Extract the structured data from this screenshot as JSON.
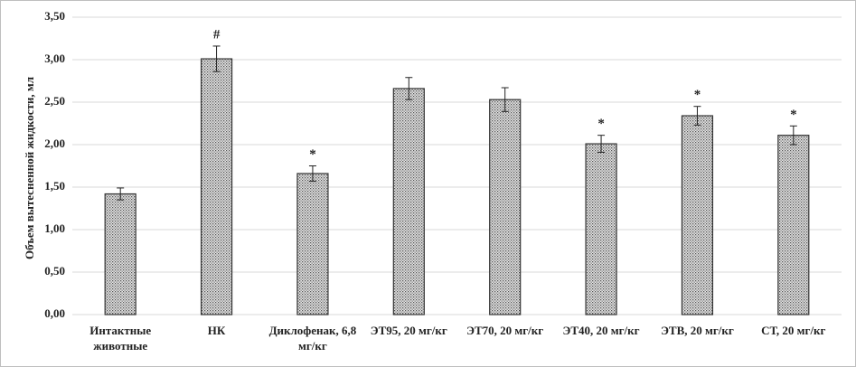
{
  "chart_data": {
    "type": "bar",
    "y_label": "Объем вытесненной жидкости, мл",
    "categories": [
      "Интактные животные",
      "НК",
      "Диклофенак, 6,8 мг/кг",
      "ЭТ95, 20 мг/кг",
      "ЭТ70, 20 мг/кг",
      "ЭТ40, 20 мг/кг",
      "ЭТВ, 20 мг/кг",
      "СТ, 20 мг/кг"
    ],
    "values": [
      1.42,
      3.01,
      1.66,
      2.66,
      2.53,
      2.01,
      2.34,
      2.11
    ],
    "errors": [
      0.07,
      0.15,
      0.09,
      0.13,
      0.14,
      0.1,
      0.11,
      0.11
    ],
    "annotations": [
      null,
      "#",
      "*",
      null,
      null,
      "*",
      "*",
      "*"
    ],
    "color": "#bdbdbd",
    "ylim": [
      0,
      3.5
    ],
    "yticks": [
      {
        "value": 0,
        "label": "0,00"
      },
      {
        "value": 0.5,
        "label": "0,50"
      },
      {
        "value": 1,
        "label": "1,00"
      },
      {
        "value": 1.5,
        "label": "1,50"
      },
      {
        "value": 2,
        "label": "2,00"
      },
      {
        "value": 2.5,
        "label": "2,50"
      },
      {
        "value": 3,
        "label": "3,00"
      },
      {
        "value": 3.5,
        "label": "3,50"
      }
    ],
    "grid": true
  }
}
